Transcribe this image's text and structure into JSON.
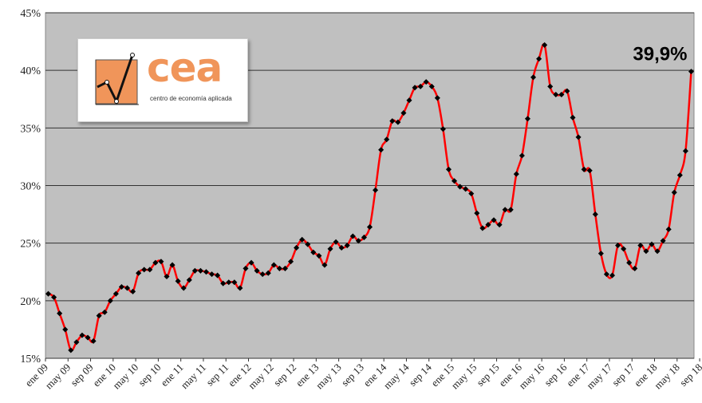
{
  "logo": {
    "name": "cea",
    "subtitle": "centro de economía aplicada"
  },
  "chart_data": {
    "type": "line",
    "title": "",
    "xlabel": "",
    "ylabel": "",
    "ylim": [
      15,
      45
    ],
    "yticks": [
      "15%",
      "20%",
      "25%",
      "30%",
      "35%",
      "40%",
      "45%"
    ],
    "xticks": [
      "ene 09",
      "may 09",
      "sep 09",
      "ene 10",
      "may 10",
      "sep 10",
      "ene 11",
      "may 11",
      "sep 11",
      "ene 12",
      "may 12",
      "sep 12",
      "ene 13",
      "may 13",
      "sep 13",
      "ene 14",
      "may 14",
      "sep 14",
      "ene 15",
      "may 15",
      "sep 15",
      "ene 16",
      "may 16",
      "sep 16",
      "ene 17",
      "may 17",
      "sep 17",
      "ene 18",
      "may 18",
      "sep 18"
    ],
    "grid": true,
    "line_color": "#ff0000",
    "marker_color": "#000000",
    "background": "#c0c0c0",
    "annotation": "39,9%",
    "series": [
      {
        "name": "",
        "x_start": "ene 09",
        "x_frequency": "monthly",
        "values": [
          20.6,
          20.3,
          18.9,
          17.5,
          15.7,
          16.4,
          17.0,
          16.8,
          16.5,
          18.7,
          19.0,
          20.0,
          20.6,
          21.2,
          21.1,
          20.8,
          22.4,
          22.7,
          22.7,
          23.3,
          23.4,
          22.1,
          23.1,
          21.7,
          21.1,
          21.8,
          22.6,
          22.6,
          22.5,
          22.3,
          22.2,
          21.5,
          21.6,
          21.6,
          21.1,
          22.8,
          23.3,
          22.6,
          22.3,
          22.4,
          23.1,
          22.8,
          22.8,
          23.4,
          24.6,
          25.3,
          24.9,
          24.2,
          23.9,
          23.1,
          24.5,
          25.1,
          24.6,
          24.8,
          25.6,
          25.2,
          25.5,
          26.4,
          29.6,
          33.1,
          34.0,
          35.6,
          35.5,
          36.3,
          37.4,
          38.5,
          38.6,
          39.0,
          38.6,
          37.6,
          34.9,
          31.4,
          30.4,
          29.9,
          29.7,
          29.3,
          27.6,
          26.3,
          26.6,
          27.0,
          26.6,
          27.9,
          27.9,
          31.0,
          32.6,
          35.8,
          39.4,
          41.0,
          42.2,
          38.6,
          37.9,
          37.9,
          38.2,
          35.9,
          34.2,
          31.4,
          31.3,
          27.5,
          24.1,
          22.3,
          22.2,
          24.8,
          24.5,
          23.3,
          22.8,
          24.8,
          24.3,
          24.9,
          24.3,
          25.2,
          26.2,
          29.4,
          30.9,
          33.0,
          39.9
        ]
      }
    ]
  }
}
